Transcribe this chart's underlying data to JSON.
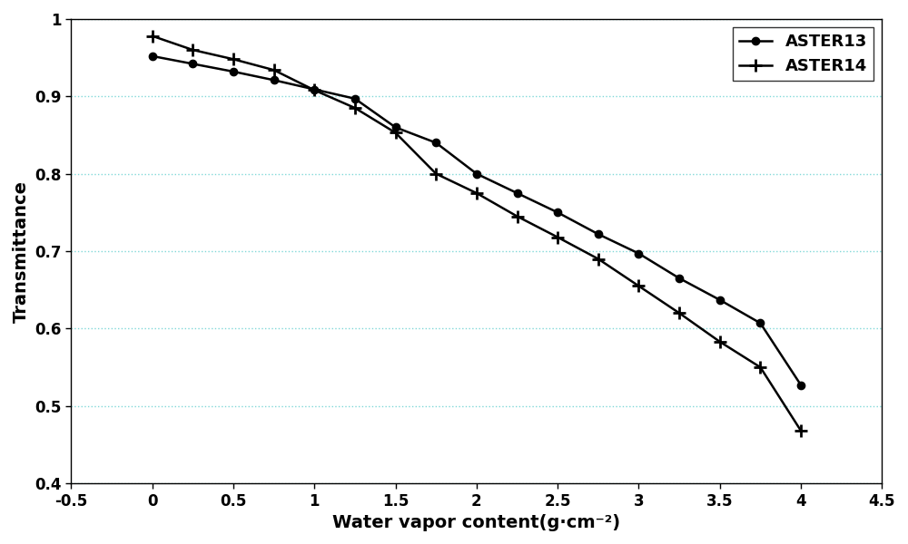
{
  "x13": [
    0,
    0.25,
    0.5,
    0.75,
    1.0,
    1.25,
    1.5,
    1.75,
    2.0,
    2.25,
    2.5,
    2.75,
    3.0,
    3.25,
    3.5,
    3.75,
    4.0
  ],
  "y13": [
    0.952,
    0.942,
    0.932,
    0.921,
    0.909,
    0.897,
    0.86,
    0.84,
    0.8,
    0.775,
    0.75,
    0.722,
    0.697,
    0.665,
    0.637,
    0.607,
    0.527
  ],
  "x14": [
    0,
    0.25,
    0.5,
    0.75,
    1.0,
    1.25,
    1.5,
    1.75,
    2.0,
    2.25,
    2.5,
    2.75,
    3.0,
    3.25,
    3.5,
    3.75,
    4.0
  ],
  "y14": [
    0.978,
    0.96,
    0.948,
    0.934,
    0.908,
    0.885,
    0.853,
    0.8,
    0.775,
    0.745,
    0.718,
    0.69,
    0.655,
    0.62,
    0.583,
    0.55,
    0.468
  ],
  "xlabel": "Water vapor content(g·cm⁻²)",
  "ylabel": "Transmittance",
  "xlim": [
    -0.5,
    4.5
  ],
  "ylim": [
    0.4,
    1.0
  ],
  "xticks": [
    -0.5,
    0,
    0.5,
    1.0,
    1.5,
    2.0,
    2.5,
    3.0,
    3.5,
    4.0,
    4.5
  ],
  "yticks": [
    0.4,
    0.5,
    0.6,
    0.7,
    0.8,
    0.9,
    1.0
  ],
  "grid_color": "#80D8D8",
  "line_color": "#000000",
  "legend_labels": [
    "ASTER13",
    "ASTER14"
  ],
  "fontsize_label": 14,
  "fontsize_tick": 12,
  "fontsize_legend": 13
}
